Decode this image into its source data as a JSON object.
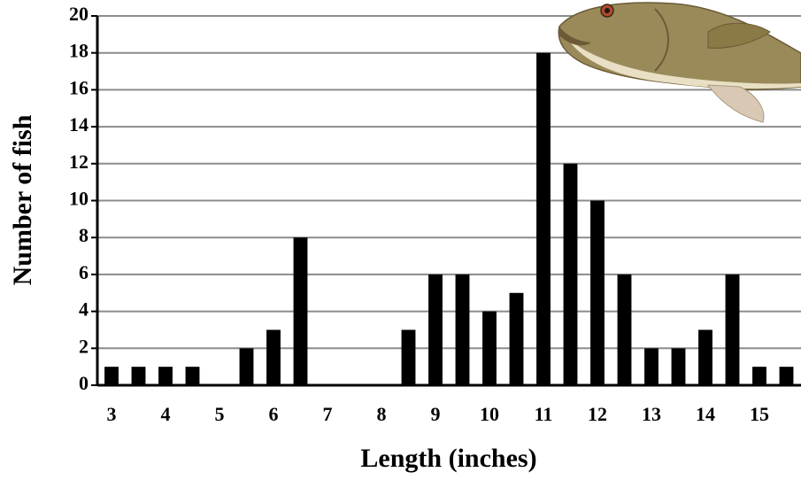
{
  "chart_data": {
    "type": "bar",
    "x_label": "Length (inches)",
    "y_label": "Number of fish",
    "categories": [
      3,
      null,
      4,
      null,
      5,
      null,
      6,
      null,
      7,
      null,
      8,
      null,
      9,
      null,
      10,
      null,
      11,
      null,
      12,
      null,
      13,
      null,
      14,
      null,
      15,
      null
    ],
    "values": [
      1,
      1,
      1,
      1,
      0,
      2,
      3,
      8,
      0,
      0,
      0,
      3,
      6,
      6,
      4,
      5,
      18,
      12,
      10,
      6,
      2,
      2,
      3,
      6,
      1,
      1
    ],
    "color": "#000000",
    "ylim": [
      0,
      20
    ],
    "yticks": [
      0,
      2,
      4,
      6,
      8,
      10,
      12,
      14,
      16,
      18,
      20
    ],
    "grid": true
  }
}
